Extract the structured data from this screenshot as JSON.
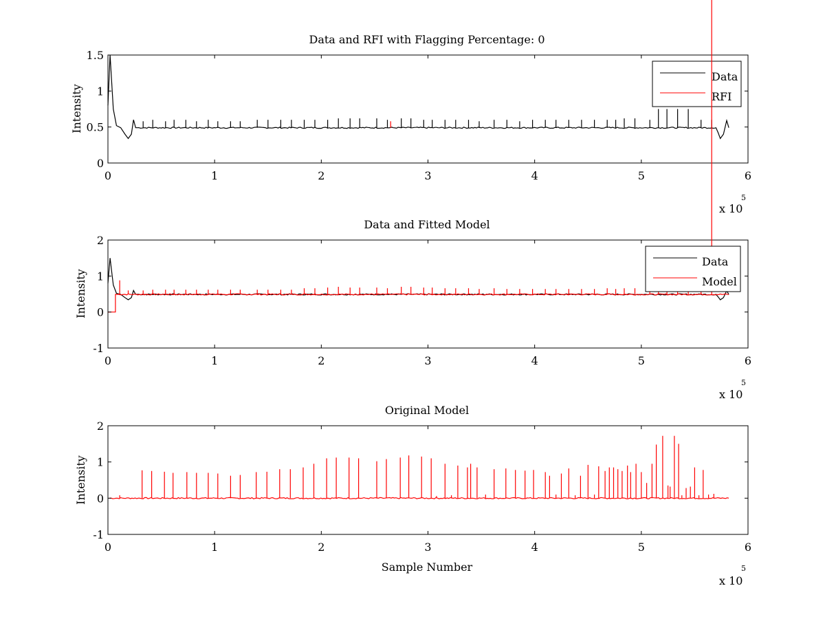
{
  "chart_data": [
    {
      "type": "line",
      "title": "Data and RFI with Flagging Percentage: 0",
      "xlabel": "",
      "ylabel": "Intensity",
      "xlim": [
        0,
        600000
      ],
      "ylim": [
        0,
        1.5
      ],
      "xticks": [
        0,
        1,
        2,
        3,
        4,
        5,
        6
      ],
      "yticks": [
        0,
        0.5,
        1,
        1.5
      ],
      "x_exponent_label": "x 10",
      "x_exponent": "5",
      "legend_position": "top-right",
      "colors": {
        "Data": "#000000",
        "RFI": "#ff0000"
      },
      "series": [
        {
          "name": "Data",
          "baseline": 0.49,
          "start_transient": [
            [
              0,
              0.8
            ],
            [
              2000,
              1.5
            ],
            [
              5000,
              0.75
            ],
            [
              8000,
              0.52
            ],
            [
              12000,
              0.49
            ],
            [
              16000,
              0.4
            ],
            [
              19000,
              0.34
            ],
            [
              22000,
              0.4
            ],
            [
              24000,
              0.6
            ],
            [
              26000,
              0.49
            ]
          ],
          "end_transient": [
            [
              570000,
              0.49
            ],
            [
              572000,
              0.42
            ],
            [
              574000,
              0.34
            ],
            [
              577000,
              0.4
            ],
            [
              580000,
              0.59
            ],
            [
              582000,
              0.49
            ]
          ],
          "spike_x": [
            33000,
            42000,
            54000,
            62000,
            73000,
            83000,
            94000,
            103000,
            115000,
            124000,
            140000,
            150000,
            162000,
            172000,
            184000,
            194000,
            206000,
            216000,
            227000,
            236000,
            252000,
            262000,
            275000,
            284000,
            296000,
            304000,
            316000,
            326000,
            338000,
            348000,
            362000,
            374000,
            386000,
            398000,
            410000,
            420000,
            432000,
            444000,
            456000,
            468000,
            476000,
            484000,
            494000,
            508000,
            516000,
            524000,
            534000,
            544000,
            556000,
            566000
          ],
          "spike_y": [
            0.58,
            0.6,
            0.58,
            0.6,
            0.6,
            0.58,
            0.6,
            0.58,
            0.58,
            0.58,
            0.6,
            0.6,
            0.6,
            0.6,
            0.6,
            0.6,
            0.6,
            0.62,
            0.62,
            0.62,
            0.62,
            0.6,
            0.62,
            0.62,
            0.6,
            0.6,
            0.6,
            0.6,
            0.6,
            0.58,
            0.6,
            0.6,
            0.58,
            0.6,
            0.6,
            0.6,
            0.6,
            0.6,
            0.6,
            0.6,
            0.6,
            0.62,
            0.62,
            0.6,
            0.75,
            0.75,
            0.75,
            0.75,
            0.6,
            0.6
          ],
          "end_x": 582000
        },
        {
          "name": "RFI",
          "spike_x": [
            265000
          ],
          "spike_y": [
            0.58
          ]
        }
      ]
    },
    {
      "type": "line",
      "title": "Data and Fitted Model",
      "xlabel": "",
      "ylabel": "Intensity",
      "xlim": [
        0,
        600000
      ],
      "ylim": [
        -1,
        2
      ],
      "xticks": [
        0,
        1,
        2,
        3,
        4,
        5,
        6
      ],
      "yticks": [
        -1,
        0,
        1,
        2
      ],
      "x_exponent_label": "x 10",
      "x_exponent": "5",
      "legend_position": "top-right",
      "colors": {
        "Data": "#000000",
        "Model": "#ff0000"
      },
      "series": [
        {
          "name": "Data",
          "baseline": 0.49,
          "start_transient": [
            [
              0,
              0.8
            ],
            [
              2000,
              1.5
            ],
            [
              5000,
              0.75
            ],
            [
              8000,
              0.52
            ],
            [
              12000,
              0.49
            ],
            [
              16000,
              0.4
            ],
            [
              19000,
              0.34
            ],
            [
              22000,
              0.4
            ],
            [
              24000,
              0.6
            ],
            [
              26000,
              0.49
            ]
          ],
          "end_transient": [
            [
              570000,
              0.49
            ],
            [
              572000,
              0.42
            ],
            [
              574000,
              0.34
            ],
            [
              577000,
              0.4
            ],
            [
              580000,
              0.59
            ],
            [
              582000,
              0.49
            ]
          ],
          "end_x": 582000
        },
        {
          "name": "Model",
          "baseline": 0.49,
          "pre_step": [
            [
              0,
              0.0
            ],
            [
              7000,
              0.0
            ],
            [
              7000,
              0.49
            ]
          ],
          "spike_x": [
            11000,
            19000,
            33000,
            42000,
            54000,
            62000,
            73000,
            83000,
            94000,
            103000,
            115000,
            124000,
            140000,
            150000,
            162000,
            172000,
            184000,
            194000,
            206000,
            216000,
            227000,
            236000,
            252000,
            262000,
            275000,
            284000,
            296000,
            304000,
            316000,
            326000,
            338000,
            348000,
            362000,
            374000,
            386000,
            398000,
            410000,
            420000,
            432000,
            444000,
            456000,
            468000,
            476000,
            484000,
            494000,
            508000,
            516000,
            524000,
            534000,
            544000,
            556000,
            566000
          ],
          "spike_y": [
            0.88,
            0.6,
            0.6,
            0.62,
            0.62,
            0.62,
            0.62,
            0.62,
            0.62,
            0.62,
            0.62,
            0.62,
            0.62,
            0.62,
            0.62,
            0.62,
            0.66,
            0.66,
            0.68,
            0.7,
            0.68,
            0.68,
            0.68,
            0.66,
            0.7,
            0.7,
            0.68,
            0.68,
            0.66,
            0.66,
            0.66,
            0.64,
            0.66,
            0.64,
            0.64,
            0.64,
            0.64,
            0.64,
            0.64,
            0.64,
            0.64,
            0.66,
            0.64,
            0.66,
            0.66,
            0.66,
            0.66,
            0.66,
            0.64,
            0.64,
            0.64
          ],
          "end_x": 582000
        }
      ]
    },
    {
      "type": "line",
      "title": "Original Model",
      "xlabel": "Sample Number",
      "ylabel": "Intensity",
      "xlim": [
        0,
        600000
      ],
      "ylim": [
        -1,
        2
      ],
      "xticks": [
        0,
        1,
        2,
        3,
        4,
        5,
        6
      ],
      "yticks": [
        -1,
        0,
        1,
        2
      ],
      "x_exponent_label": "x 10",
      "x_exponent": "5",
      "colors": {
        "Model": "#ff0000"
      },
      "series": [
        {
          "name": "",
          "baseline": 0.0,
          "spike_x": [
            11000,
            32000,
            41000,
            53000,
            61000,
            74000,
            83000,
            94000,
            103000,
            115000,
            124000,
            139000,
            149000,
            161000,
            171000,
            183000,
            193000,
            205000,
            214000,
            226000,
            235000,
            252000,
            261000,
            274000,
            282000,
            294000,
            303000,
            308000,
            316000,
            322000,
            328000,
            337000,
            340000,
            346000,
            354000,
            362000,
            373000,
            382000,
            391000,
            399000,
            410000,
            414000,
            420000,
            425000,
            432000,
            438000,
            443000,
            450000,
            456000,
            460000,
            466000,
            470000,
            474000,
            478000,
            482000,
            487000,
            490000,
            495000,
            500000,
            505000,
            510000,
            514000,
            520000,
            525000,
            527000,
            531000,
            535000,
            538000,
            542000,
            546000,
            550000,
            554000,
            558000,
            563000,
            568000
          ],
          "spike_y": [
            0.08,
            0.77,
            0.75,
            0.73,
            0.7,
            0.72,
            0.7,
            0.7,
            0.68,
            0.62,
            0.64,
            0.72,
            0.73,
            0.8,
            0.8,
            0.85,
            0.95,
            1.1,
            1.12,
            1.12,
            1.1,
            1.02,
            1.08,
            1.12,
            1.18,
            1.15,
            1.1,
            0.06,
            0.95,
            0.08,
            0.9,
            0.85,
            0.95,
            0.85,
            0.1,
            0.8,
            0.82,
            0.78,
            0.76,
            0.78,
            0.72,
            0.62,
            0.1,
            0.68,
            0.82,
            0.08,
            0.62,
            0.92,
            0.1,
            0.88,
            0.75,
            0.85,
            0.85,
            0.8,
            0.75,
            0.9,
            0.72,
            0.95,
            0.72,
            0.42,
            0.95,
            1.48,
            1.72,
            0.35,
            0.32,
            1.72,
            1.5,
            0.08,
            0.28,
            0.32,
            0.85,
            0.08,
            0.78,
            0.1,
            0.12
          ],
          "end_x": 582000
        }
      ]
    }
  ]
}
